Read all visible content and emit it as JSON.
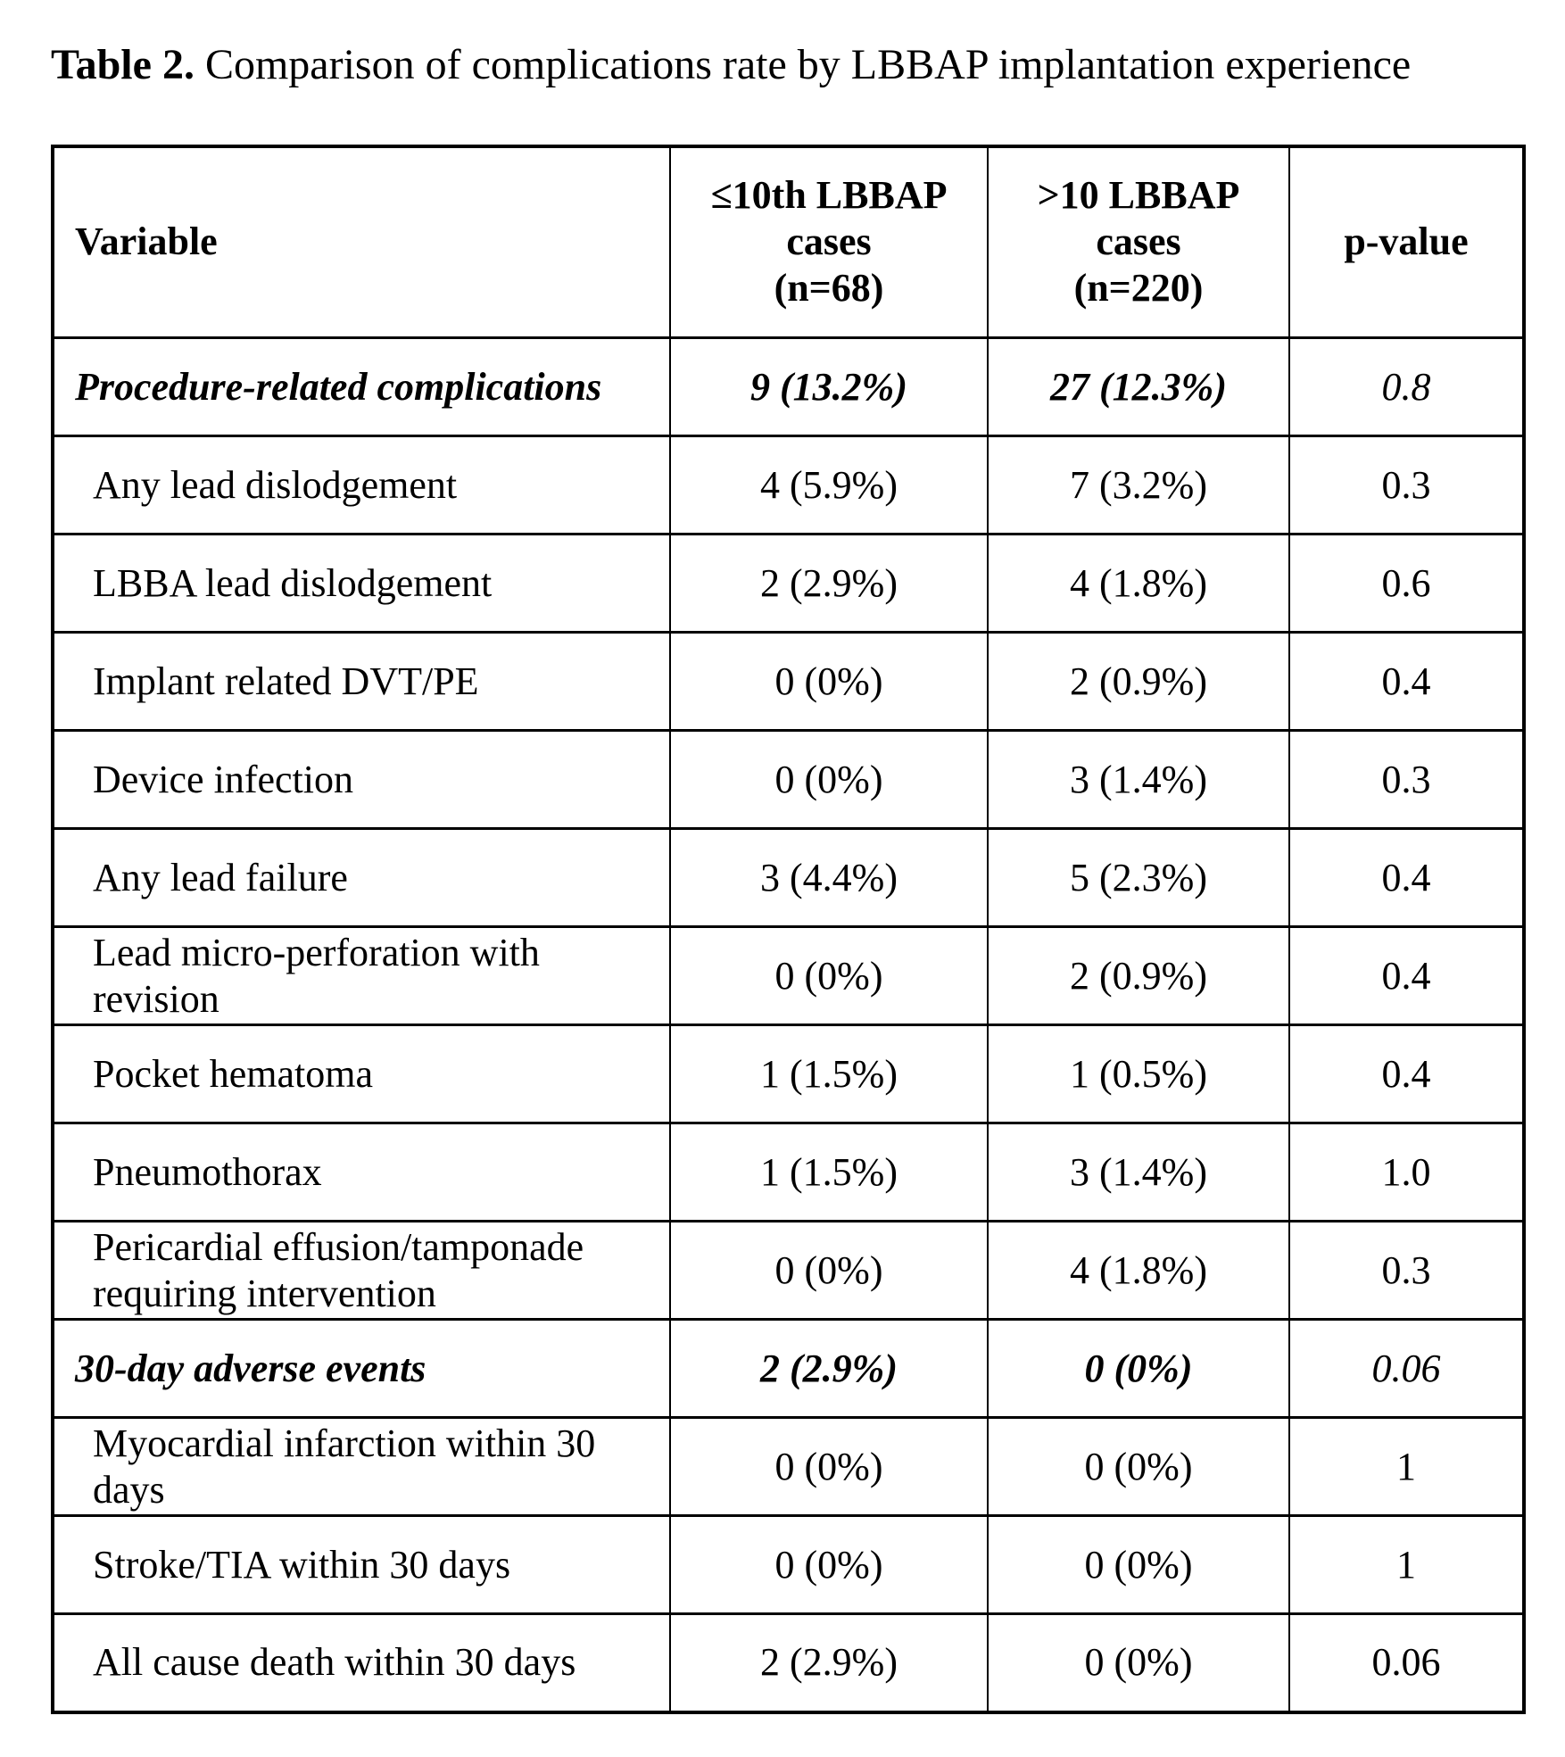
{
  "caption": {
    "label": "Table 2.",
    "text": " Comparison of complications rate by LBBAP implantation experience"
  },
  "table": {
    "header": {
      "variable": "Variable",
      "le10": [
        "≤10th LBBAP",
        "cases",
        "(n=68)"
      ],
      "gt10": [
        ">10 LBBAP",
        "cases",
        "(n=220)"
      ],
      "pvalue": "p-value"
    },
    "rows": [
      {
        "variable": "Procedure-related complications",
        "le10": "9 (13.2%)",
        "gt10": "27 (12.3%)",
        "p": "0.8"
      },
      {
        "variable": "Any lead dislodgement",
        "le10": "4 (5.9%)",
        "gt10": "7 (3.2%)",
        "p": "0.3"
      },
      {
        "variable": "LBBA lead dislodgement",
        "le10": "2 (2.9%)",
        "gt10": "4 (1.8%)",
        "p": "0.6"
      },
      {
        "variable": "Implant related DVT/PE",
        "le10": "0 (0%)",
        "gt10": "2 (0.9%)",
        "p": "0.4"
      },
      {
        "variable": "Device infection",
        "le10": "0 (0%)",
        "gt10": "3 (1.4%)",
        "p": "0.3"
      },
      {
        "variable": "Any lead failure",
        "le10": "3 (4.4%)",
        "gt10": "5 (2.3%)",
        "p": "0.4"
      },
      {
        "variable": "Lead micro-perforation with revision",
        "le10": "0 (0%)",
        "gt10": "2 (0.9%)",
        "p": "0.4"
      },
      {
        "variable": "Pocket hematoma",
        "le10": "1 (1.5%)",
        "gt10": "1 (0.5%)",
        "p": "0.4"
      },
      {
        "variable": "Pneumothorax",
        "le10": "1 (1.5%)",
        "gt10": "3 (1.4%)",
        "p": "1.0"
      },
      {
        "variable": "Pericardial effusion/tamponade requiring intervention",
        "le10": "0 (0%)",
        "gt10": "4 (1.8%)",
        "p": "0.3"
      },
      {
        "variable": "30-day adverse events",
        "le10": "2 (2.9%)",
        "gt10": "0 (0%)",
        "p": "0.06"
      },
      {
        "variable": "Myocardial infarction within 30 days",
        "le10": "0 (0%)",
        "gt10": "0 (0%)",
        "p": "1"
      },
      {
        "variable": "Stroke/TIA within 30 days",
        "le10": "0 (0%)",
        "gt10": "0 (0%)",
        "p": "1"
      },
      {
        "variable": "All cause death within 30 days",
        "le10": "2 (2.9%)",
        "gt10": "0 (0%)",
        "p": "0.06"
      }
    ]
  }
}
